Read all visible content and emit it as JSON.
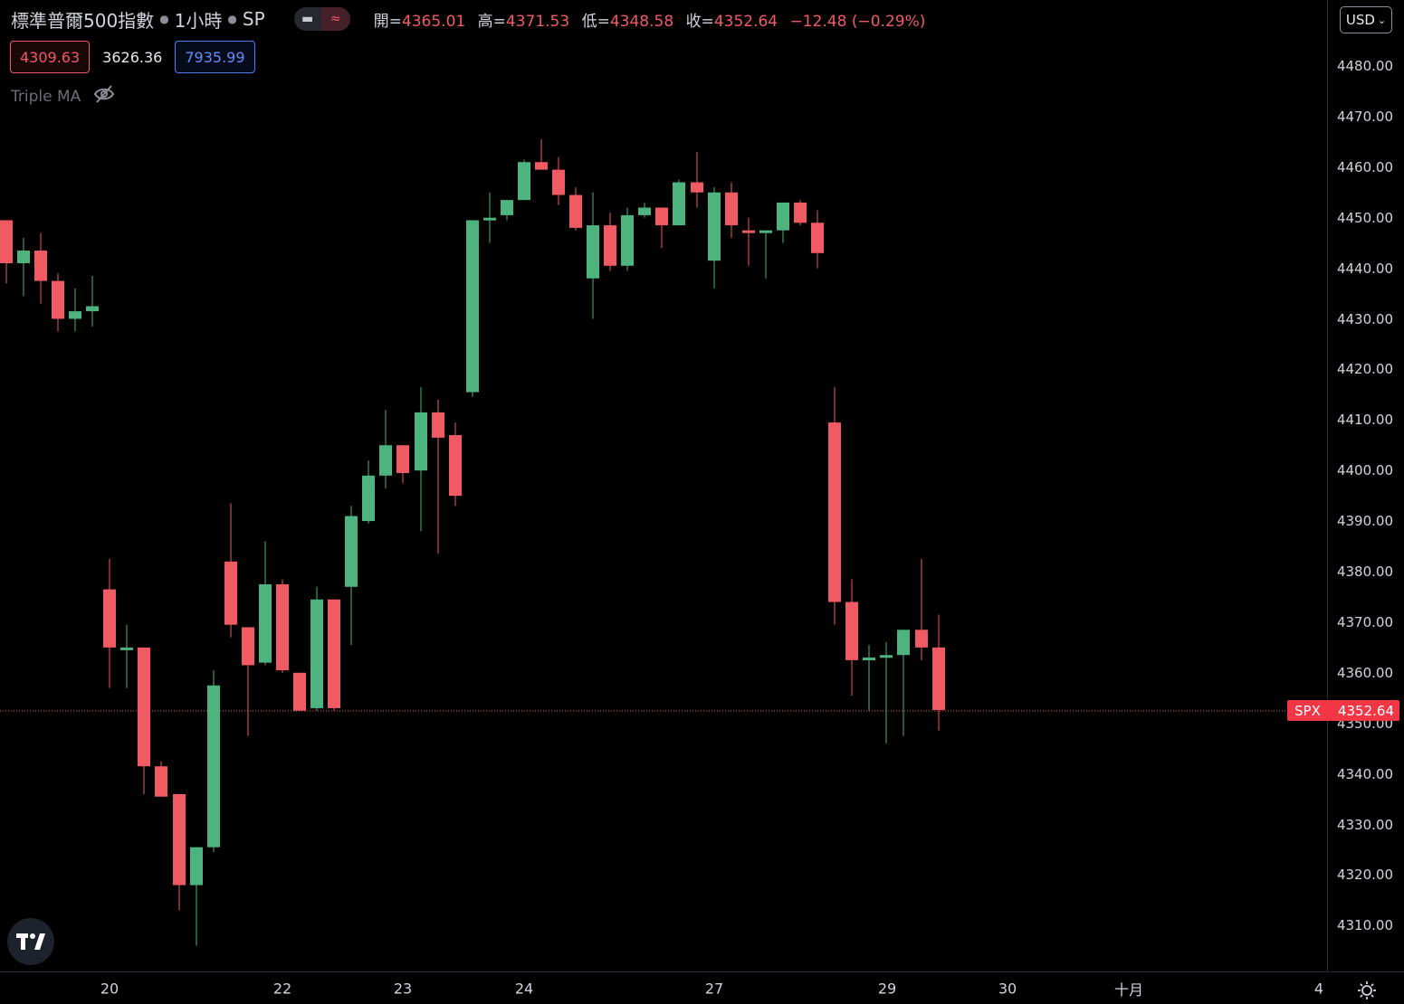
{
  "legend": {
    "symbol": "標準普爾500指數",
    "interval": "1小時",
    "exchange": "SP",
    "open_label": "開=",
    "open": "4365.01",
    "high_label": "高=",
    "high": "4371.53",
    "low_label": "低=",
    "low": "4348.58",
    "close_label": "收=",
    "close": "4352.64",
    "change": "−12.48 (−0.29%)"
  },
  "values": {
    "red": "4309.63",
    "white": "3626.36",
    "blue": "7935.99"
  },
  "indicator": {
    "name": "Triple MA"
  },
  "currency": "USD",
  "last_price": {
    "symbol": "SPX",
    "value": "4352.64"
  },
  "colors": {
    "up": "#4db47f",
    "down": "#f05a63",
    "background": "#000000"
  },
  "price_ticks": [
    "4480.00",
    "4470.00",
    "4460.00",
    "4450.00",
    "4440.00",
    "4430.00",
    "4420.00",
    "4410.00",
    "4400.00",
    "4390.00",
    "4380.00",
    "4370.00",
    "4360.00",
    "4350.00",
    "4340.00",
    "4330.00",
    "4320.00",
    "4310.00"
  ],
  "time_labels": [
    "20",
    "22",
    "23",
    "24",
    "27",
    "29",
    "30",
    "十月",
    "4"
  ],
  "chart_data": {
    "type": "candlestick",
    "y_range": [
      4302,
      4490
    ],
    "candles": [
      {
        "o": 4449.5,
        "h": 4449.5,
        "l": 4437.0,
        "c": 4441.0
      },
      {
        "o": 4441.0,
        "h": 4446.0,
        "l": 4434.5,
        "c": 4443.5
      },
      {
        "o": 4443.5,
        "h": 4447.0,
        "l": 4433.0,
        "c": 4437.5
      },
      {
        "o": 4437.5,
        "h": 4439.0,
        "l": 4427.5,
        "c": 4430.0
      },
      {
        "o": 4430.0,
        "h": 4436.0,
        "l": 4427.5,
        "c": 4431.5
      },
      {
        "o": 4431.5,
        "h": 4438.5,
        "l": 4428.5,
        "c": 4432.5
      },
      {
        "o": 4376.5,
        "h": 4382.5,
        "l": 4357.0,
        "c": 4365.0
      },
      {
        "o": 4364.5,
        "h": 4369.5,
        "l": 4357.0,
        "c": 4365.0
      },
      {
        "o": 4365.0,
        "h": 4365.0,
        "l": 4336.0,
        "c": 4341.5
      },
      {
        "o": 4341.5,
        "h": 4342.5,
        "l": 4335.5,
        "c": 4335.5
      },
      {
        "o": 4336.0,
        "h": 4336.0,
        "l": 4313.0,
        "c": 4318.0
      },
      {
        "o": 4318.0,
        "h": 4325.5,
        "l": 4306.0,
        "c": 4325.5
      },
      {
        "o": 4325.5,
        "h": 4360.5,
        "l": 4324.5,
        "c": 4357.5
      },
      {
        "o": 4382.0,
        "h": 4393.5,
        "l": 4367.0,
        "c": 4369.5
      },
      {
        "o": 4369.0,
        "h": 4369.0,
        "l": 4347.5,
        "c": 4361.5
      },
      {
        "o": 4362.0,
        "h": 4386.0,
        "l": 4361.5,
        "c": 4377.5
      },
      {
        "o": 4377.5,
        "h": 4378.5,
        "l": 4360.0,
        "c": 4360.5
      },
      {
        "o": 4360.0,
        "h": 4360.0,
        "l": 4352.5,
        "c": 4352.5
      },
      {
        "o": 4353.0,
        "h": 4377.0,
        "l": 4352.5,
        "c": 4374.5
      },
      {
        "o": 4374.5,
        "h": 4374.5,
        "l": 4352.5,
        "c": 4353.0
      },
      {
        "o": 4377.0,
        "h": 4393.0,
        "l": 4365.5,
        "c": 4391.0
      },
      {
        "o": 4390.0,
        "h": 4402.0,
        "l": 4389.5,
        "c": 4399.0
      },
      {
        "o": 4399.0,
        "h": 4412.0,
        "l": 4396.5,
        "c": 4405.0
      },
      {
        "o": 4405.0,
        "h": 4405.0,
        "l": 4397.5,
        "c": 4399.5
      },
      {
        "o": 4400.0,
        "h": 4416.5,
        "l": 4388.0,
        "c": 4411.5
      },
      {
        "o": 4411.5,
        "h": 4414.0,
        "l": 4383.5,
        "c": 4406.5
      },
      {
        "o": 4407.0,
        "h": 4409.5,
        "l": 4393.0,
        "c": 4395.0
      },
      {
        "o": 4415.5,
        "h": 4449.5,
        "l": 4414.5,
        "c": 4449.5
      },
      {
        "o": 4449.5,
        "h": 4455.0,
        "l": 4445.0,
        "c": 4450.0
      },
      {
        "o": 4450.5,
        "h": 4453.5,
        "l": 4449.5,
        "c": 4453.5
      },
      {
        "o": 4453.5,
        "h": 4461.5,
        "l": 4453.5,
        "c": 4461.0
      },
      {
        "o": 4461.0,
        "h": 4465.5,
        "l": 4459.5,
        "c": 4459.5
      },
      {
        "o": 4459.5,
        "h": 4462.0,
        "l": 4452.5,
        "c": 4454.5
      },
      {
        "o": 4454.5,
        "h": 4456.0,
        "l": 4447.5,
        "c": 4448.0
      },
      {
        "o": 4438.0,
        "h": 4455.0,
        "l": 4430.0,
        "c": 4448.5
      },
      {
        "o": 4448.5,
        "h": 4451.0,
        "l": 4439.5,
        "c": 4440.5
      },
      {
        "o": 4440.5,
        "h": 4452.0,
        "l": 4439.5,
        "c": 4450.5
      },
      {
        "o": 4450.5,
        "h": 4453.0,
        "l": 4450.0,
        "c": 4452.0
      },
      {
        "o": 4452.0,
        "h": 4452.0,
        "l": 4444.0,
        "c": 4448.5
      },
      {
        "o": 4448.5,
        "h": 4457.5,
        "l": 4448.5,
        "c": 4457.0
      },
      {
        "o": 4457.0,
        "h": 4463.0,
        "l": 4452.0,
        "c": 4455.0
      },
      {
        "o": 4441.5,
        "h": 4456.0,
        "l": 4436.0,
        "c": 4455.0
      },
      {
        "o": 4455.0,
        "h": 4457.0,
        "l": 4446.0,
        "c": 4448.5
      },
      {
        "o": 4447.5,
        "h": 4450.0,
        "l": 4440.5,
        "c": 4447.0
      },
      {
        "o": 4447.5,
        "h": 4447.5,
        "l": 4438.0,
        "c": 4447.5
      },
      {
        "o": 4447.5,
        "h": 4453.0,
        "l": 4445.0,
        "c": 4453.0
      },
      {
        "o": 4453.0,
        "h": 4453.5,
        "l": 4448.5,
        "c": 4449.0
      },
      {
        "o": 4449.0,
        "h": 4451.5,
        "l": 4440.0,
        "c": 4443.0
      },
      {
        "o": 4409.5,
        "h": 4416.5,
        "l": 4369.5,
        "c": 4374.0
      },
      {
        "o": 4374.0,
        "h": 4378.5,
        "l": 4355.5,
        "c": 4362.5
      },
      {
        "o": 4362.5,
        "h": 4365.5,
        "l": 4352.5,
        "c": 4363.0
      },
      {
        "o": 4363.0,
        "h": 4366.0,
        "l": 4346.0,
        "c": 4363.5
      },
      {
        "o": 4363.5,
        "h": 4368.5,
        "l": 4347.5,
        "c": 4368.5
      },
      {
        "o": 4368.5,
        "h": 4382.5,
        "l": 4362.5,
        "c": 4365.0
      },
      {
        "o": 4365.01,
        "h": 4371.53,
        "l": 4348.58,
        "c": 4352.64
      }
    ]
  }
}
